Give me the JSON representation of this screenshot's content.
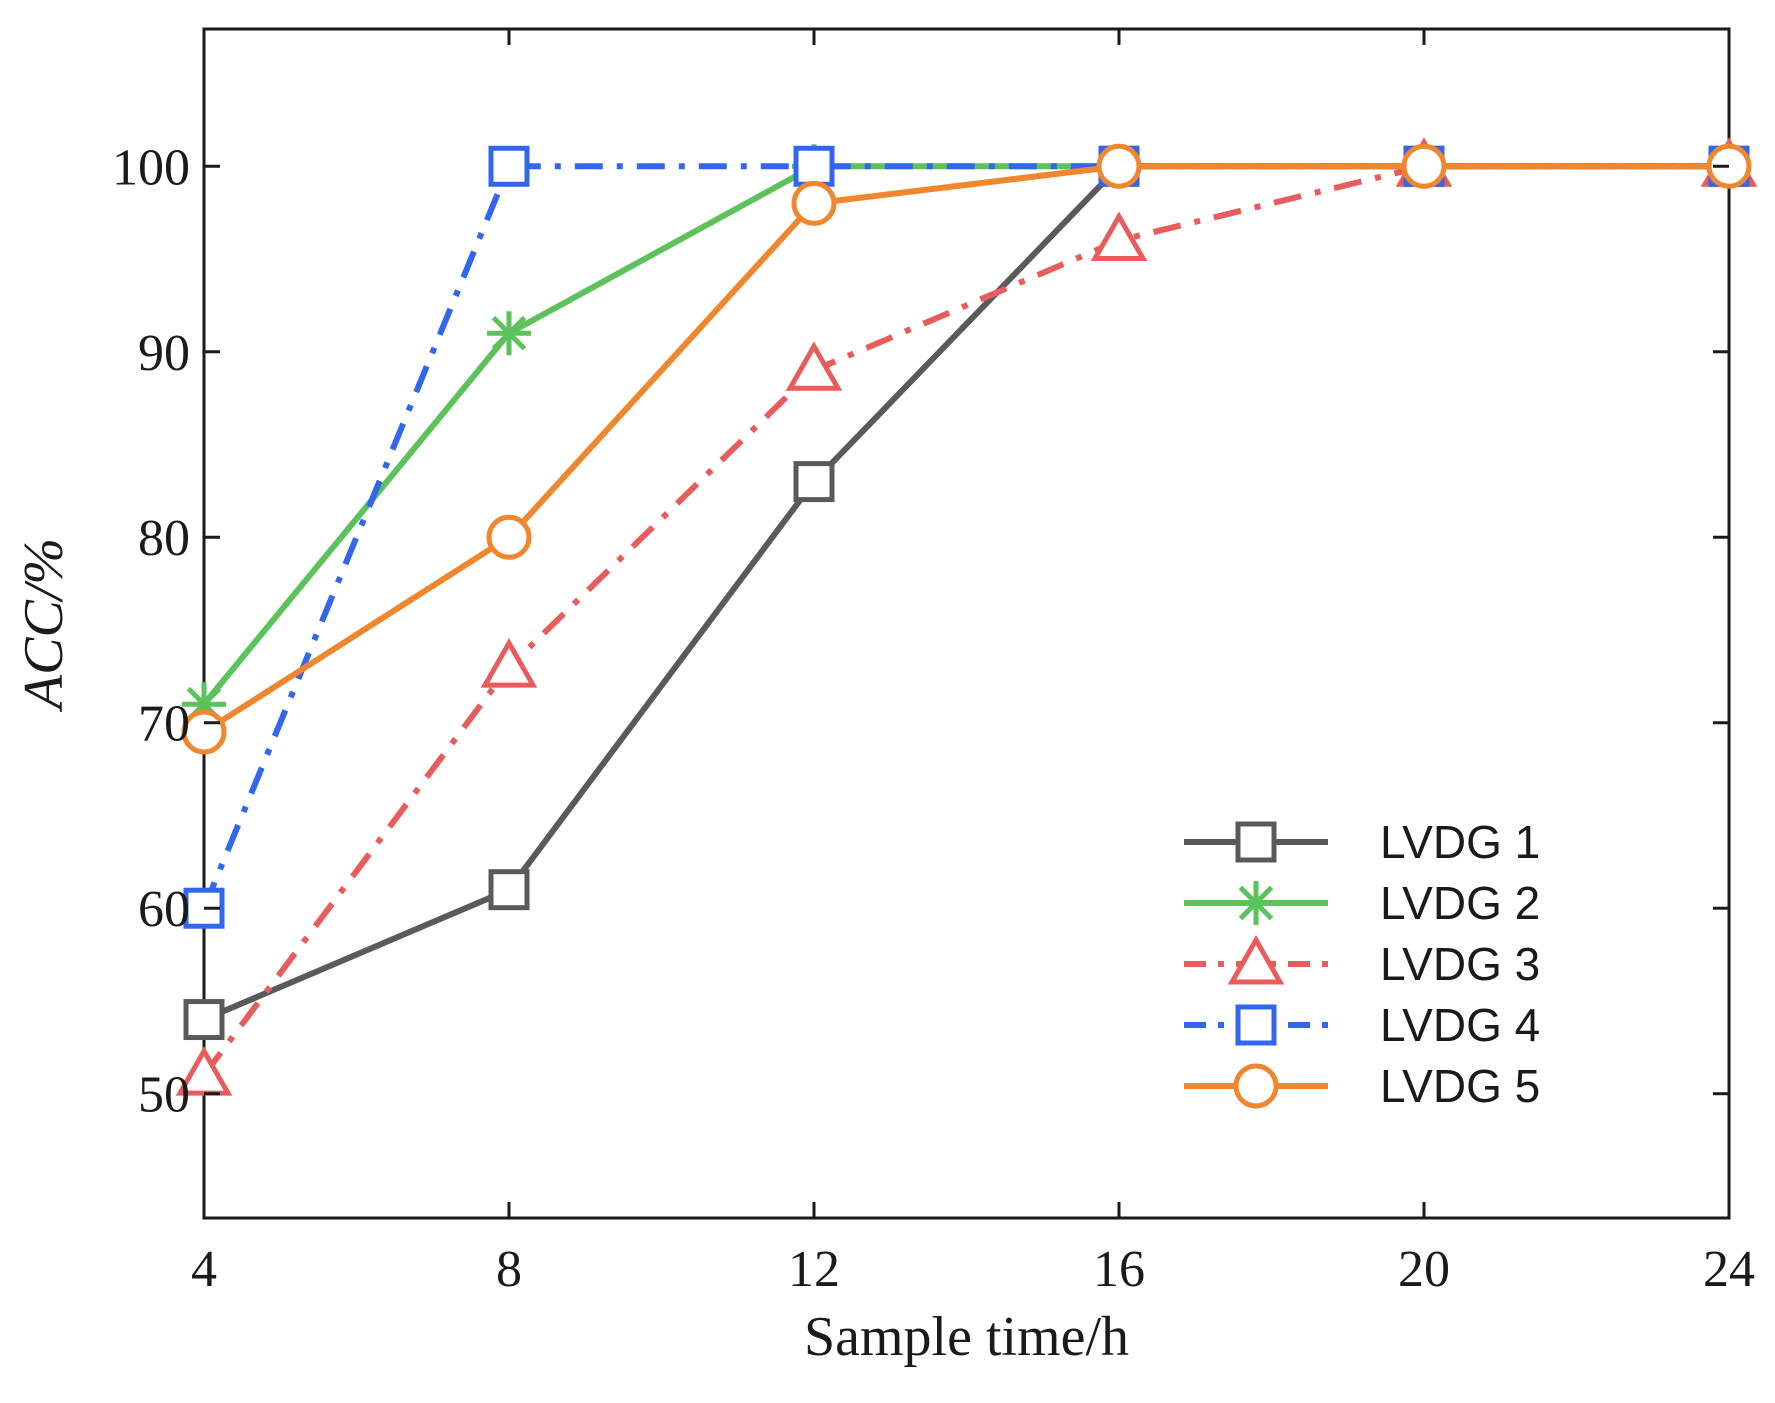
{
  "chart_data": {
    "type": "line",
    "title": "",
    "xlabel": "Sample time/h",
    "ylabel": "ACC/%",
    "x": [
      4,
      8,
      12,
      16,
      20,
      24
    ],
    "xticks": [
      "4",
      "8",
      "12",
      "16",
      "20",
      "24"
    ],
    "yticks": [
      "50",
      "60",
      "70",
      "80",
      "90",
      "100"
    ],
    "xlim": [
      4,
      24
    ],
    "ylim": [
      43.3,
      107.4
    ],
    "grid": false,
    "legend_position": "bottom-right",
    "series": [
      {
        "name": "LVDG 1",
        "values": [
          54,
          61,
          83,
          100,
          100,
          100
        ],
        "color": "#5a5a5a",
        "marker": "square",
        "dash": "solid"
      },
      {
        "name": "LVDG 2",
        "values": [
          71,
          91,
          100,
          100,
          100,
          100
        ],
        "color": "#5cc25c",
        "marker": "star",
        "dash": "solid"
      },
      {
        "name": "LVDG 3",
        "values": [
          51,
          73,
          89,
          96,
          100,
          100
        ],
        "color": "#e85c5c",
        "marker": "triangle",
        "dash": "dashdot"
      },
      {
        "name": "LVDG 4",
        "values": [
          60,
          100,
          100,
          100,
          100,
          100
        ],
        "color": "#3366ee",
        "marker": "square",
        "dash": "dashdot"
      },
      {
        "name": "LVDG 5",
        "values": [
          69.5,
          80,
          98,
          100,
          100,
          100
        ],
        "color": "#f0862e",
        "marker": "circle",
        "dash": "solid"
      }
    ]
  }
}
